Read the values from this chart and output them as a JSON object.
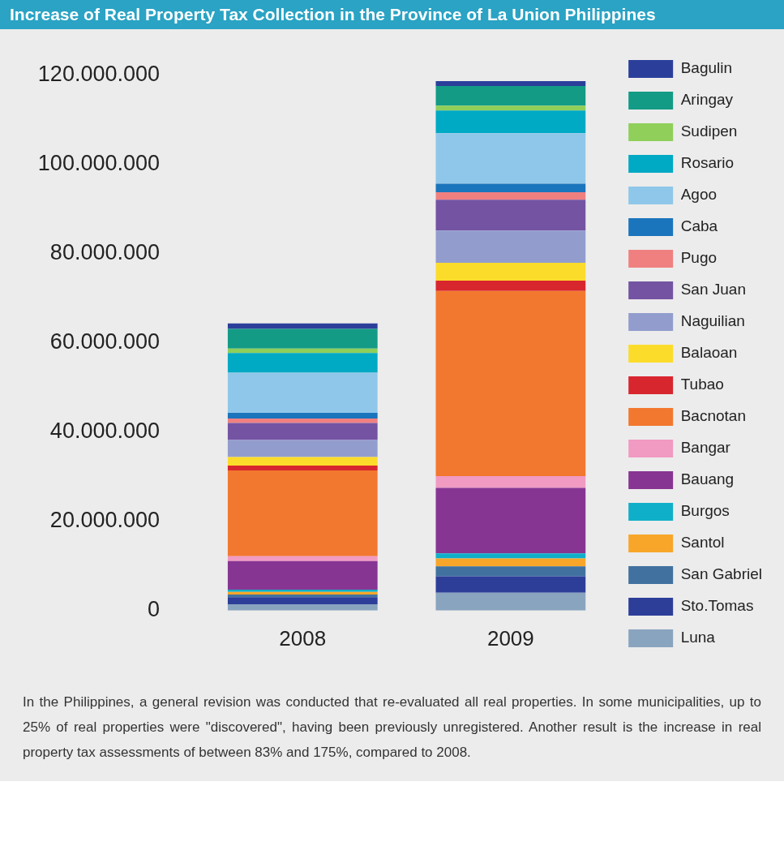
{
  "chart_data": {
    "type": "bar",
    "title": "Increase of Real Property Tax Collection in the Province of La Union Philippines",
    "categories": [
      "2008",
      "2009"
    ],
    "stacked": true,
    "grid": false,
    "legend": "right",
    "ylim": [
      0,
      120000000
    ],
    "yticks": [
      {
        "value": 0,
        "label": "0"
      },
      {
        "value": 20000000,
        "label": "20.000.000"
      },
      {
        "value": 40000000,
        "label": "40.000.000"
      },
      {
        "value": 60000000,
        "label": "60.000.000"
      },
      {
        "value": 80000000,
        "label": "80.000.000"
      },
      {
        "value": 100000000,
        "label": "100.000.000"
      },
      {
        "value": 120000000,
        "label": "120.000.000"
      }
    ],
    "series": [
      {
        "name": "Luna",
        "color": "#89a4bf",
        "values": [
          1400000,
          4000000
        ]
      },
      {
        "name": "Sto.Tomas",
        "color": "#2d3e99",
        "values": [
          1600000,
          3700000
        ]
      },
      {
        "name": "San Gabriel",
        "color": "#41719f",
        "values": [
          600000,
          2200000
        ]
      },
      {
        "name": "Santol",
        "color": "#f8a629",
        "values": [
          600000,
          1800000
        ]
      },
      {
        "name": "Burgos",
        "color": "#10afc9",
        "values": [
          500000,
          1100000
        ]
      },
      {
        "name": "Bauang",
        "color": "#873593",
        "values": [
          6400000,
          14700000
        ]
      },
      {
        "name": "Bangar",
        "color": "#f19ac2",
        "values": [
          1100000,
          2600000
        ]
      },
      {
        "name": "Bacnotan",
        "color": "#f2782f",
        "values": [
          19200000,
          41500000
        ]
      },
      {
        "name": "Tubao",
        "color": "#d8262f",
        "values": [
          1100000,
          2300000
        ]
      },
      {
        "name": "Balaoan",
        "color": "#fcdc2b",
        "values": [
          1900000,
          4000000
        ]
      },
      {
        "name": "Naguilian",
        "color": "#929dce",
        "values": [
          3800000,
          7200000
        ]
      },
      {
        "name": "San Juan",
        "color": "#7453a3",
        "values": [
          3800000,
          6900000
        ]
      },
      {
        "name": "Pugo",
        "color": "#f08080",
        "values": [
          1000000,
          1700000
        ]
      },
      {
        "name": "Caba",
        "color": "#1b75bc",
        "values": [
          1300000,
          1900000
        ]
      },
      {
        "name": "Agoo",
        "color": "#8fc7ea",
        "values": [
          9000000,
          11300000
        ]
      },
      {
        "name": "Rosario",
        "color": "#00a9c4",
        "values": [
          4400000,
          5100000
        ]
      },
      {
        "name": "Sudipen",
        "color": "#8fcf5a",
        "values": [
          1000000,
          1100000
        ]
      },
      {
        "name": "Aringay",
        "color": "#139b86",
        "values": [
          4400000,
          4400000
        ]
      },
      {
        "name": "Bagulin",
        "color": "#2b3f9a",
        "values": [
          1200000,
          1100000
        ]
      }
    ],
    "annotations": [
      "In the Philippines, a general revision was conducted that re-evaluated all real properties. In some municipalities, up to 25% of real properties were \"discovered\", having been previously unregistered. Another result is the increase in real property tax assessments of between 83% and 175%, compared to 2008."
    ]
  }
}
